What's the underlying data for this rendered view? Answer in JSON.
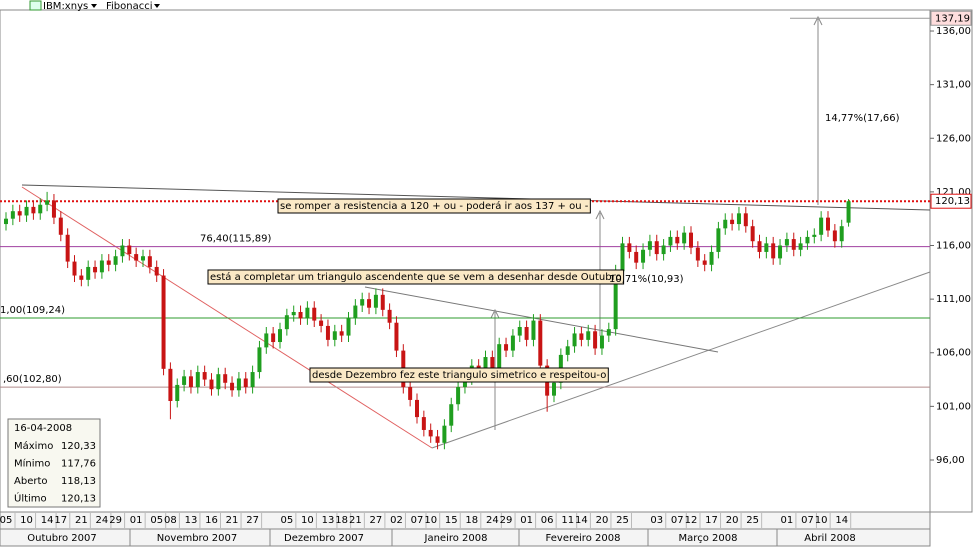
{
  "toolbar": {
    "symbol": "IBM:xnys",
    "study": "Fibonacci"
  },
  "chart_data": {
    "type": "candlestick",
    "categories": [
      "05",
      null,
      null,
      "10",
      null,
      null,
      "14",
      null,
      "17",
      null,
      null,
      "21",
      null,
      null,
      "24",
      null,
      "29",
      null,
      null,
      "01",
      null,
      null,
      "05",
      null,
      "08",
      null,
      null,
      "13",
      null,
      null,
      "16",
      null,
      null,
      "21",
      null,
      null,
      "27",
      null,
      null,
      null,
      null,
      "05",
      null,
      null,
      "10",
      null,
      null,
      "13",
      null,
      "18",
      null,
      "21",
      null,
      null,
      "27",
      null,
      null,
      "02",
      null,
      null,
      "07",
      null,
      "10",
      null,
      null,
      "15",
      null,
      null,
      "18",
      null,
      null,
      "24",
      null,
      "29",
      null,
      null,
      "01",
      null,
      null,
      "06",
      null,
      null,
      "11",
      null,
      "14",
      null,
      null,
      "20",
      null,
      null,
      "25",
      null,
      null,
      null,
      null,
      "03",
      null,
      null,
      "07",
      null,
      "12",
      null,
      null,
      "17",
      null,
      null,
      "20",
      null,
      null,
      "25",
      null,
      null,
      null,
      null,
      "01",
      null,
      null,
      "07",
      null,
      "10",
      null,
      null,
      "14",
      null
    ],
    "open": [
      118.0,
      118.5,
      119.2,
      118.8,
      119.6,
      119.0,
      119.8,
      120.2,
      118.6,
      117.0,
      114.5,
      113.2,
      112.8,
      114.0,
      113.5,
      114.6,
      114.2,
      115.0,
      116.0,
      115.2,
      114.6,
      115.0,
      114.0,
      113.2,
      104.5,
      101.5,
      103.0,
      103.8,
      102.8,
      104.2,
      103.5,
      102.6,
      104.0,
      103.2,
      102.5,
      103.6,
      102.8,
      104.2,
      106.5,
      107.8,
      107.0,
      108.2,
      109.5,
      109.8,
      109.2,
      110.2,
      109.0,
      108.5,
      107.2,
      108.0,
      107.6,
      109.2,
      110.4,
      111.0,
      110.2,
      111.4,
      110.0,
      108.8,
      106.2,
      102.8,
      101.6,
      100.0,
      98.8,
      98.2,
      97.6,
      99.2,
      101.2,
      102.8,
      103.6,
      104.8,
      104.0,
      105.6,
      104.6,
      106.8,
      106.2,
      107.6,
      108.4,
      107.2,
      109.0,
      104.8,
      102.0,
      103.2,
      105.8,
      106.6,
      107.8,
      107.2,
      108.0,
      106.4,
      107.6,
      108.2,
      113.6,
      116.2,
      115.4,
      114.4,
      115.6,
      116.4,
      115.2,
      116.0,
      116.8,
      116.2,
      117.2,
      115.8,
      114.6,
      114.2,
      115.4,
      117.6,
      118.4,
      118.0,
      119.0,
      117.8,
      116.4,
      115.4,
      116.2,
      114.8,
      116.0,
      116.6,
      115.6,
      116.2,
      116.8,
      117.0,
      118.6,
      117.4,
      116.4,
      118.13
    ],
    "high": [
      119.1,
      119.8,
      119.8,
      120.2,
      120.2,
      120.4,
      121.0,
      120.8,
      119.2,
      117.6,
      115.1,
      113.8,
      114.6,
      114.6,
      115.2,
      115.2,
      115.6,
      116.6,
      116.6,
      115.8,
      115.6,
      115.6,
      114.6,
      113.8,
      105.1,
      103.6,
      104.4,
      104.4,
      104.8,
      104.8,
      104.1,
      104.6,
      104.6,
      103.8,
      104.2,
      104.2,
      104.8,
      107.1,
      108.4,
      108.4,
      108.8,
      110.1,
      110.4,
      110.4,
      110.8,
      110.8,
      109.6,
      109.1,
      108.6,
      108.6,
      109.8,
      111.0,
      111.6,
      111.6,
      112.0,
      112.0,
      110.6,
      109.4,
      106.8,
      103.4,
      102.2,
      100.6,
      99.4,
      98.8,
      99.8,
      101.8,
      103.4,
      104.2,
      105.4,
      105.4,
      106.2,
      106.2,
      107.4,
      107.4,
      108.2,
      109.0,
      109.0,
      109.6,
      109.6,
      105.4,
      103.8,
      106.4,
      107.2,
      108.4,
      108.4,
      108.6,
      108.6,
      108.2,
      108.8,
      114.2,
      116.8,
      116.8,
      116.0,
      116.2,
      117.0,
      117.0,
      116.6,
      117.4,
      117.4,
      117.8,
      117.8,
      116.4,
      115.2,
      116.0,
      118.2,
      119.0,
      119.0,
      119.6,
      119.6,
      118.4,
      117.0,
      116.8,
      116.8,
      116.6,
      117.2,
      117.2,
      116.8,
      117.4,
      117.6,
      119.2,
      119.2,
      118.0,
      118.4,
      120.33
    ],
    "low": [
      117.4,
      117.9,
      118.2,
      118.2,
      118.4,
      118.4,
      119.2,
      118.0,
      116.4,
      113.9,
      112.6,
      112.2,
      112.2,
      112.9,
      112.9,
      113.6,
      113.6,
      114.4,
      114.6,
      114.0,
      114.0,
      113.4,
      112.6,
      103.9,
      99.8,
      100.9,
      102.4,
      102.2,
      102.2,
      102.9,
      102.0,
      102.0,
      102.6,
      101.9,
      101.9,
      102.2,
      102.2,
      103.6,
      105.9,
      106.4,
      106.4,
      107.6,
      108.9,
      108.6,
      108.6,
      108.4,
      107.9,
      106.6,
      106.6,
      107.0,
      107.0,
      108.6,
      109.8,
      109.6,
      109.6,
      109.4,
      108.2,
      105.6,
      102.2,
      101.0,
      99.4,
      98.2,
      97.6,
      97.0,
      97.0,
      98.6,
      100.6,
      102.2,
      103.0,
      103.4,
      103.4,
      104.0,
      104.0,
      105.6,
      105.6,
      107.0,
      106.6,
      106.6,
      104.2,
      100.5,
      101.4,
      102.6,
      105.2,
      106.0,
      106.6,
      106.6,
      105.8,
      105.8,
      107.0,
      107.6,
      113.0,
      114.8,
      113.8,
      113.8,
      115.0,
      114.6,
      114.6,
      115.4,
      115.6,
      115.6,
      115.2,
      114.0,
      113.6,
      113.6,
      114.8,
      117.0,
      117.4,
      117.4,
      117.2,
      115.8,
      114.8,
      114.8,
      114.2,
      114.2,
      115.4,
      115.0,
      115.0,
      115.6,
      116.2,
      116.4,
      116.8,
      115.8,
      115.8,
      117.76
    ],
    "close": [
      118.5,
      119.2,
      118.8,
      119.6,
      119.0,
      119.8,
      120.2,
      118.6,
      117.0,
      114.5,
      113.2,
      112.8,
      114.0,
      113.5,
      114.6,
      114.2,
      115.0,
      116.0,
      115.2,
      114.6,
      115.0,
      114.0,
      113.2,
      104.5,
      101.5,
      103.0,
      103.8,
      102.8,
      104.2,
      103.5,
      102.6,
      104.0,
      103.2,
      102.5,
      103.6,
      102.8,
      104.2,
      106.5,
      107.8,
      107.0,
      108.2,
      109.5,
      109.8,
      109.2,
      110.2,
      109.0,
      108.5,
      107.2,
      108.0,
      107.6,
      109.2,
      110.4,
      111.0,
      110.2,
      111.4,
      110.0,
      108.8,
      106.2,
      102.8,
      101.6,
      100.0,
      98.8,
      98.2,
      97.6,
      99.2,
      101.2,
      102.8,
      103.6,
      104.8,
      104.0,
      105.6,
      104.6,
      106.8,
      106.2,
      107.6,
      108.4,
      107.2,
      109.0,
      104.8,
      102.0,
      103.2,
      105.8,
      106.6,
      107.8,
      107.2,
      108.0,
      106.4,
      107.6,
      108.2,
      113.6,
      116.2,
      115.4,
      114.4,
      115.6,
      116.4,
      115.2,
      116.0,
      116.8,
      116.2,
      117.2,
      115.8,
      114.6,
      114.2,
      115.4,
      117.6,
      118.4,
      118.0,
      119.0,
      117.8,
      116.4,
      115.4,
      116.2,
      114.8,
      116.0,
      116.6,
      115.6,
      116.2,
      116.8,
      117.0,
      118.6,
      117.4,
      116.4,
      117.8,
      120.13
    ],
    "up_color": "#1f9e1f",
    "down_color": "#c81414",
    "months": [
      "Outubro 2007",
      "Novembro 2007",
      "Dezembro 2007",
      "Janeiro 2008",
      "Fevereiro 2008",
      "Março 2008",
      "Abril 2008"
    ],
    "ylim": [
      91.15,
      137.96
    ],
    "yticks": [
      {
        "value": 96,
        "label": "96,00"
      },
      {
        "value": 101,
        "label": "101,00"
      },
      {
        "value": 106,
        "label": "106,00"
      },
      {
        "value": 111,
        "label": "111,00"
      },
      {
        "value": 116,
        "label": "116,00"
      },
      {
        "value": 121,
        "label": "121,00"
      },
      {
        "value": 126,
        "label": "126,00"
      },
      {
        "value": 131,
        "label": "131,00"
      },
      {
        "value": 136,
        "label": "136,00"
      }
    ],
    "fib_levels": [
      {
        "value": 115.89,
        "label": "76,40(115,89)",
        "color": "#a040a0"
      },
      {
        "value": 109.24,
        "label": "1,00(109,24)",
        "color": "#2e9b2e"
      },
      {
        "value": 102.8,
        "label": ",60(102,80)",
        "color": "#b08a8a"
      }
    ],
    "price_markers": [
      {
        "value": 120.13,
        "label": "120,13",
        "color": "#e01010"
      },
      {
        "value": 137.19,
        "label": "137,19",
        "color": "#999999"
      }
    ],
    "annotations": [
      "se romper a resistencia a 120 +  ou - poderá ir aos 137 + ou -",
      "está a completar um triangulo ascendente que se vem a desenhar desde Outubro",
      "desde Dezembro fez este triangulo simetrico e respeitou-o",
      "10,71%(10,93)",
      "14,77%(17,66)"
    ]
  },
  "info": {
    "date": "16-04-2008",
    "rows": [
      [
        "Máximo",
        "120,33"
      ],
      [
        "Mínimo",
        "117,76"
      ],
      [
        "Aberto",
        "118,13"
      ],
      [
        "Último",
        "120,13"
      ]
    ]
  }
}
